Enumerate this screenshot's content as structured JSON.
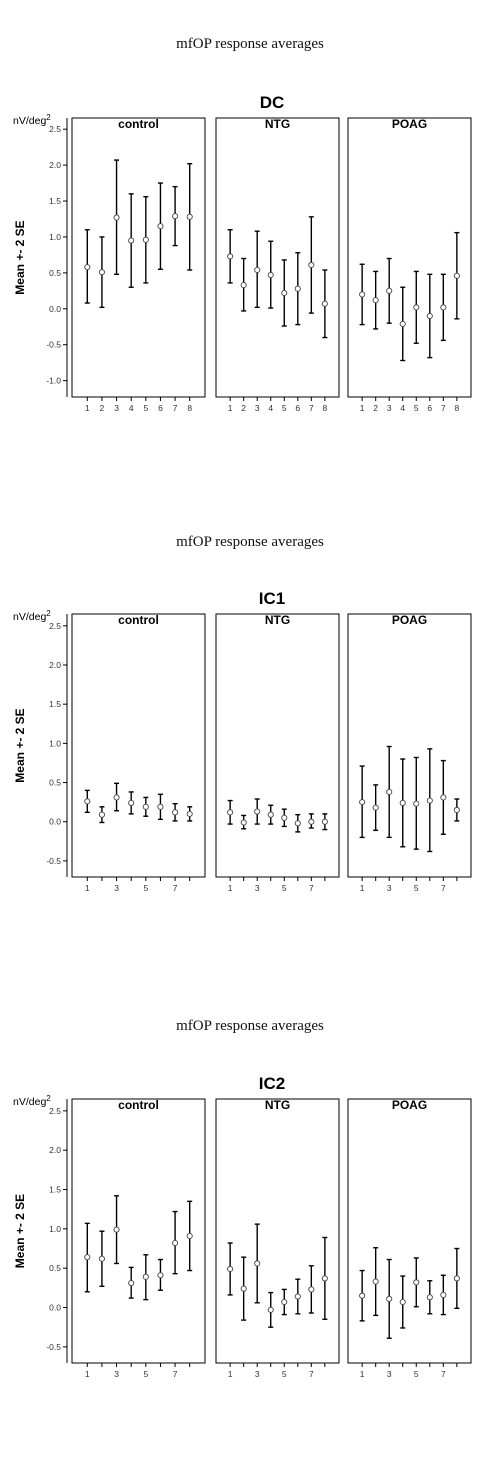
{
  "chart_data": [
    {
      "type": "scatter",
      "figure_title": "mfOP response averages",
      "title": "DC",
      "ylabel": "Mean +- 2 SE",
      "unit_label": "nV/deg",
      "unit_superscript": "2",
      "ylim": [
        -1.2,
        2.6
      ],
      "yticks": [
        2.5,
        2.0,
        1.5,
        1.0,
        0.5,
        0.0,
        -0.5,
        -1.0
      ],
      "ytick_labels": [
        "2.5",
        "2.0",
        "1.5",
        "1.0",
        "0.5",
        "0.0",
        "-0.5",
        "-1.0"
      ],
      "xlim": [
        0.5,
        8.5
      ],
      "xticks": [
        1,
        2,
        3,
        4,
        5,
        6,
        7,
        8
      ],
      "xtick_labels": [
        "1",
        "2",
        "3",
        "4",
        "5",
        "6",
        "7",
        "8"
      ],
      "grid": false,
      "panels": [
        {
          "name": "control",
          "x": [
            1,
            2,
            3,
            4,
            5,
            6,
            7,
            8
          ],
          "mean": [
            0.58,
            0.51,
            1.27,
            0.95,
            0.96,
            1.15,
            1.29,
            1.28
          ],
          "lower": [
            0.08,
            0.02,
            0.48,
            0.3,
            0.36,
            0.55,
            0.88,
            0.54
          ],
          "upper": [
            1.1,
            1.0,
            2.07,
            1.6,
            1.56,
            1.75,
            1.7,
            2.02
          ]
        },
        {
          "name": "NTG",
          "x": [
            1,
            2,
            3,
            4,
            5,
            6,
            7,
            8
          ],
          "mean": [
            0.73,
            0.33,
            0.54,
            0.47,
            0.22,
            0.28,
            0.61,
            0.07
          ],
          "lower": [
            0.36,
            -0.03,
            0.02,
            0.01,
            -0.24,
            -0.22,
            -0.06,
            -0.4
          ],
          "upper": [
            1.1,
            0.7,
            1.08,
            0.94,
            0.68,
            0.78,
            1.28,
            0.54
          ]
        },
        {
          "name": "POAG",
          "x": [
            1,
            2,
            3,
            4,
            5,
            6,
            7,
            8
          ],
          "mean": [
            0.2,
            0.12,
            0.25,
            -0.21,
            0.02,
            -0.1,
            0.02,
            0.46
          ],
          "lower": [
            -0.22,
            -0.28,
            -0.2,
            -0.72,
            -0.48,
            -0.68,
            -0.44,
            -0.14
          ],
          "upper": [
            0.62,
            0.52,
            0.7,
            0.3,
            0.52,
            0.48,
            0.48,
            1.06
          ]
        }
      ]
    },
    {
      "type": "scatter",
      "figure_title": "mfOP response averages",
      "title": "IC1",
      "ylabel": "Mean +- 2 SE",
      "unit_label": "nV/deg",
      "unit_superscript": "2",
      "ylim": [
        -0.68,
        2.6
      ],
      "yticks": [
        2.5,
        2.0,
        1.5,
        1.0,
        0.5,
        0.0,
        -0.5
      ],
      "ytick_labels": [
        "2.5",
        "2.0",
        "1.5",
        "1.0",
        "0.5",
        "0.0",
        "-0.5"
      ],
      "xlim": [
        0.5,
        8.5
      ],
      "xticks": [
        1,
        2,
        3,
        4,
        5,
        6,
        7,
        8
      ],
      "xtick_labels": [
        "1",
        "",
        "3",
        "",
        "5",
        "",
        "7",
        ""
      ],
      "grid": false,
      "panels": [
        {
          "name": "control",
          "x": [
            1,
            2,
            3,
            4,
            5,
            6,
            7,
            8
          ],
          "mean": [
            0.26,
            0.09,
            0.31,
            0.24,
            0.19,
            0.19,
            0.12,
            0.1
          ],
          "lower": [
            0.12,
            -0.01,
            0.14,
            0.1,
            0.07,
            0.03,
            0.01,
            0.01
          ],
          "upper": [
            0.4,
            0.19,
            0.49,
            0.38,
            0.31,
            0.35,
            0.23,
            0.19
          ]
        },
        {
          "name": "NTG",
          "x": [
            1,
            2,
            3,
            4,
            5,
            6,
            7,
            8
          ],
          "mean": [
            0.12,
            -0.01,
            0.13,
            0.09,
            0.05,
            -0.02,
            0.0,
            0.0
          ],
          "lower": [
            -0.03,
            -0.09,
            -0.03,
            -0.03,
            -0.06,
            -0.13,
            -0.08,
            -0.1
          ],
          "upper": [
            0.27,
            0.08,
            0.29,
            0.21,
            0.16,
            0.09,
            0.1,
            0.1
          ]
        },
        {
          "name": "POAG",
          "x": [
            1,
            2,
            3,
            4,
            5,
            6,
            7,
            8
          ],
          "mean": [
            0.25,
            0.18,
            0.38,
            0.24,
            0.23,
            0.27,
            0.31,
            0.15
          ],
          "lower": [
            -0.2,
            -0.11,
            -0.2,
            -0.32,
            -0.35,
            -0.38,
            -0.16,
            0.01
          ],
          "upper": [
            0.71,
            0.47,
            0.96,
            0.8,
            0.82,
            0.93,
            0.78,
            0.29
          ]
        }
      ]
    },
    {
      "type": "scatter",
      "figure_title": "mfOP response averages",
      "title": "IC2",
      "ylabel": "Mean +- 2 SE",
      "unit_label": "nV/deg",
      "unit_superscript": "2",
      "ylim": [
        -0.68,
        2.6
      ],
      "yticks": [
        2.5,
        2.0,
        1.5,
        1.0,
        0.5,
        0.0,
        -0.5
      ],
      "ytick_labels": [
        "2.5",
        "2.0",
        "1.5",
        "1.0",
        "0.5",
        "0.0",
        "-0.5"
      ],
      "xlim": [
        0.5,
        8.5
      ],
      "xticks": [
        1,
        2,
        3,
        4,
        5,
        6,
        7,
        8
      ],
      "xtick_labels": [
        "1",
        "",
        "3",
        "",
        "5",
        "",
        "7",
        ""
      ],
      "grid": false,
      "panels": [
        {
          "name": "control",
          "x": [
            1,
            2,
            3,
            4,
            5,
            6,
            7,
            8
          ],
          "mean": [
            0.64,
            0.62,
            0.99,
            0.31,
            0.39,
            0.41,
            0.82,
            0.91
          ],
          "lower": [
            0.2,
            0.27,
            0.56,
            0.12,
            0.1,
            0.22,
            0.43,
            0.47
          ],
          "upper": [
            1.07,
            0.97,
            1.42,
            0.51,
            0.67,
            0.61,
            1.22,
            1.35
          ]
        },
        {
          "name": "NTG",
          "x": [
            1,
            2,
            3,
            4,
            5,
            6,
            7,
            8
          ],
          "mean": [
            0.49,
            0.24,
            0.56,
            -0.03,
            0.07,
            0.14,
            0.23,
            0.37
          ],
          "lower": [
            0.16,
            -0.16,
            0.06,
            -0.25,
            -0.09,
            -0.08,
            -0.07,
            -0.15
          ],
          "upper": [
            0.82,
            0.64,
            1.06,
            0.19,
            0.23,
            0.36,
            0.53,
            0.89
          ]
        },
        {
          "name": "POAG",
          "x": [
            1,
            2,
            3,
            4,
            5,
            6,
            7,
            8
          ],
          "mean": [
            0.15,
            0.33,
            0.11,
            0.07,
            0.32,
            0.13,
            0.16,
            0.37
          ],
          "lower": [
            -0.17,
            -0.1,
            -0.39,
            -0.26,
            0.01,
            -0.08,
            -0.09,
            -0.01
          ],
          "upper": [
            0.47,
            0.76,
            0.61,
            0.4,
            0.63,
            0.34,
            0.41,
            0.75
          ]
        }
      ]
    }
  ]
}
